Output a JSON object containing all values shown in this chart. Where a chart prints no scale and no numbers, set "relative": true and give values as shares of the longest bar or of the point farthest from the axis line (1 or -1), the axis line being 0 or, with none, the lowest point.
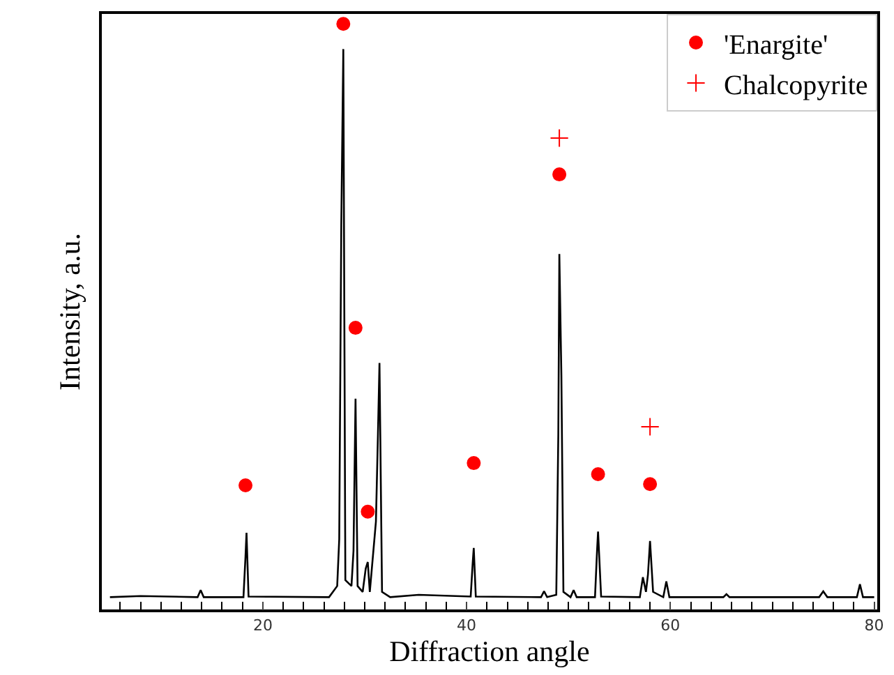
{
  "chart_data": {
    "type": "line",
    "xlabel": "Diffraction angle",
    "ylabel": "Intensity, a.u.",
    "relative": true,
    "xlim": [
      4.2,
      80.3
    ],
    "xticks": [
      20,
      40,
      60,
      80
    ],
    "legend": "top right",
    "series": [
      {
        "color": "#000000",
        "x": [
          5,
          8,
          13.6,
          13.9,
          14.2,
          18.1,
          18.3,
          18.4,
          18.6,
          26.5,
          27.3,
          27.5,
          27.7,
          27.9,
          28.1,
          28.7,
          28.9,
          29.1,
          29.3,
          29.8,
          30.1,
          30.3,
          30.5,
          31.1,
          31.3,
          31.45,
          31.7,
          32.5,
          35.3,
          40.4,
          40.6,
          40.7,
          40.9,
          47.3,
          47.6,
          47.9,
          48.8,
          49.0,
          49.1,
          49.3,
          49.5,
          50.2,
          50.5,
          50.8,
          52.6,
          52.8,
          52.9,
          53.2,
          57.0,
          57.3,
          57.6,
          57.8,
          58.0,
          58.3,
          59.3,
          59.6,
          59.9,
          65.2,
          65.5,
          65.8,
          74.6,
          75.0,
          75.4,
          78.3,
          78.6,
          78.9,
          80
        ],
        "values": [
          0.021,
          0.023,
          0.021,
          0.033,
          0.021,
          0.021,
          0.09,
          0.131,
          0.022,
          0.021,
          0.04,
          0.12,
          0.657,
          0.957,
          0.05,
          0.04,
          0.1,
          0.36,
          0.04,
          0.03,
          0.07,
          0.081,
          0.03,
          0.15,
          0.3,
          0.421,
          0.03,
          0.021,
          0.025,
          0.022,
          0.08,
          0.105,
          0.022,
          0.021,
          0.031,
          0.021,
          0.025,
          0.3,
          0.607,
          0.4,
          0.03,
          0.021,
          0.033,
          0.021,
          0.021,
          0.1,
          0.133,
          0.022,
          0.021,
          0.055,
          0.03,
          0.06,
          0.117,
          0.03,
          0.021,
          0.048,
          0.021,
          0.021,
          0.026,
          0.021,
          0.021,
          0.031,
          0.021,
          0.021,
          0.043,
          0.021,
          0.021
        ]
      },
      {
        "type": "scatter",
        "name": "'Enargite'",
        "color": "#ff0000",
        "marker": "circle",
        "x": [
          18.3,
          27.9,
          29.1,
          30.3,
          40.7,
          49.1,
          52.9,
          58.0
        ],
        "values": [
          0.212,
          1.0,
          0.481,
          0.167,
          0.25,
          0.743,
          0.231,
          0.214
        ]
      },
      {
        "type": "scatter",
        "name": "Chalcopyrite",
        "color": "#ff0000",
        "marker": "cross",
        "x": [
          49.1,
          58.0
        ],
        "values": [
          0.805,
          0.312
        ]
      }
    ]
  }
}
